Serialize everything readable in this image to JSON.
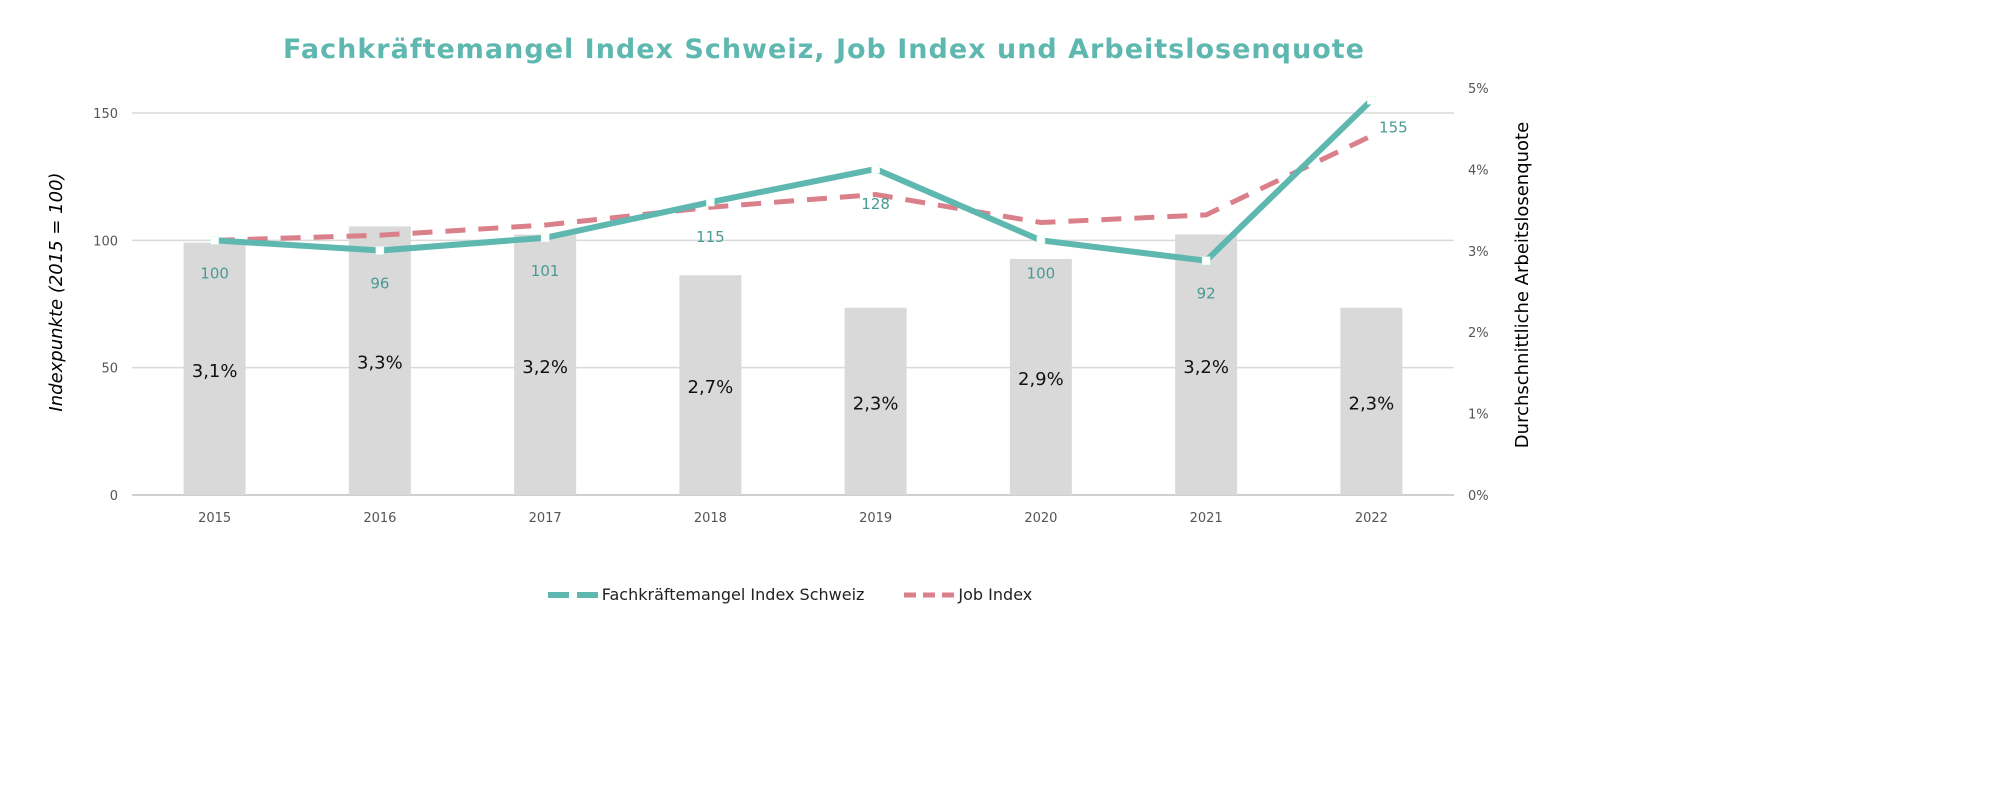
{
  "chart_data": {
    "type": "bar+line",
    "title": "Fachkräftemangel Index Schweiz, Job Index und Arbeitslosenquote",
    "categories": [
      "2015",
      "2016",
      "2017",
      "2018",
      "2019",
      "2020",
      "2021",
      "2022"
    ],
    "ylabel_left": "Indexpunkte (2015 = 100)",
    "ylabel_right": "Durchschnittliche Arbeitslosenquote",
    "ylim_left": [
      0,
      150
    ],
    "yticks_left": [
      "0",
      "50",
      "100",
      "150"
    ],
    "ylim_right": [
      0,
      5
    ],
    "yticks_right": [
      "0%",
      "1%",
      "2%",
      "3%",
      "4%",
      "5%"
    ],
    "grid": true,
    "legend_position": "bottom",
    "bars": {
      "values": [
        3.1,
        3.3,
        3.2,
        2.7,
        2.3,
        2.9,
        3.2,
        2.3
      ],
      "labels": [
        "3,1%",
        "3,3%",
        "3,2%",
        "2,7%",
        "2,3%",
        "2,9%",
        "3,2%",
        "2,3%"
      ],
      "color": "#d9d9d9"
    },
    "series": [
      {
        "name": "Fachkräftemangel Index Schweiz",
        "values": [
          100,
          96,
          101,
          115,
          128,
          100,
          92,
          155
        ],
        "labels": [
          "100",
          "96",
          "101",
          "115",
          "128",
          "100",
          "92",
          "155"
        ],
        "color": "#5fb8b0"
      },
      {
        "name": "Job Index",
        "values": [
          100,
          102,
          106,
          113,
          118,
          107,
          110,
          141
        ],
        "color": "#d9808a"
      }
    ]
  }
}
